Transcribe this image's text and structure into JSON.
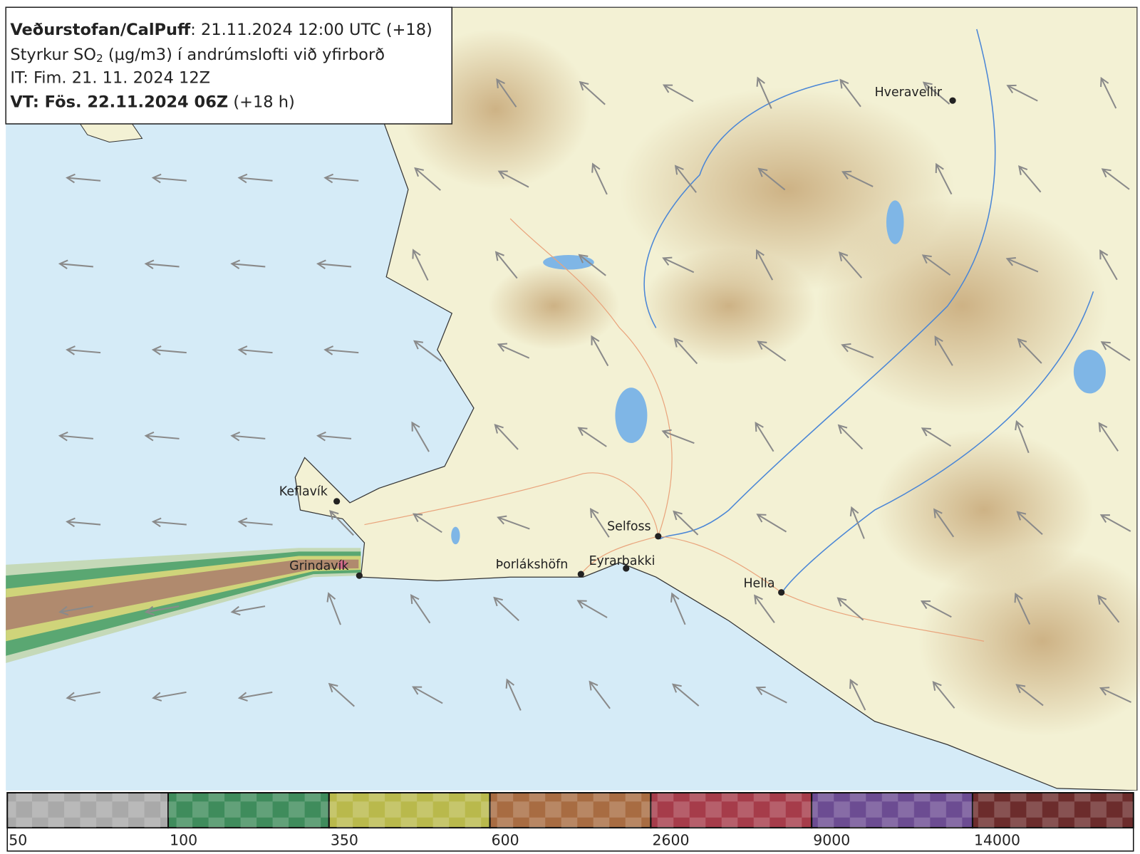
{
  "header": {
    "line1_bold": "Veðurstofan/CalPuff",
    "line1_rest": ": 21.11.2024 12:00 UTC (+18)",
    "line2_a": "Styrkur SO",
    "line2_sub": "2",
    "line2_b": " (µg/m3) í andrúmslofti við yfirborð",
    "line3": "IT: Fim. 21. 11. 2024 12Z",
    "line4_bold": "VT: Fös. 22.11.2024 06Z",
    "line4_rest": " (+18 h)"
  },
  "places": [
    "Hveravellir",
    "Keflavík",
    "Grindavík",
    "Þorlákshöfn",
    "Selfoss",
    "Eyrarbakki",
    "Hella"
  ],
  "legend": {
    "thresholds": [
      50,
      100,
      350,
      600,
      2600,
      9000,
      14000
    ],
    "colors": [
      "#a9a9a9",
      "#3f8c5c",
      "#b9b94c",
      "#a86c42",
      "#a63c4a",
      "#6c4c92",
      "#6c2c2c"
    ]
  }
}
